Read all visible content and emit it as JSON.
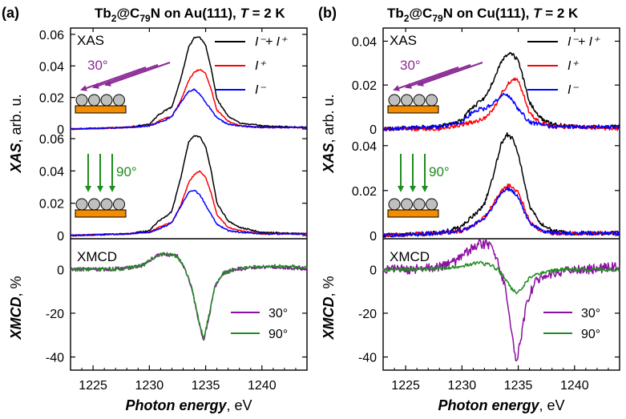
{
  "colors": {
    "sum": "#000000",
    "plus": "#ff0000",
    "minus": "#0000ff",
    "xmcd30": "#8b0fa0",
    "xmcd90": "#228b22",
    "surface": "#f28c00",
    "sphere": "#bfbfbf",
    "arrow30": "#8b2a96",
    "arrow90": "#1e8c1e"
  },
  "chart_data": [
    {
      "type": "line",
      "panel": "(a)",
      "title_parts": [
        "Tb",
        "2",
        "@C",
        "79",
        "N on Au(111), ",
        "T",
        " = 2 K"
      ],
      "xlabel": "Photon energy, eV",
      "xlabel_italic": "Photon energy",
      "xlabel_unit": ", eV",
      "xlim": [
        1223,
        1244
      ],
      "xticks": [
        1225,
        1230,
        1235,
        1240
      ],
      "ylabel_xas": "XAS, arb. u.",
      "ylabel_xas_italic": "XAS",
      "ylabel_xas_unit": ", arb. u.",
      "ylabel_xmcd": "XMCD, %",
      "ylabel_xmcd_italic": "XMCD",
      "ylabel_xmcd_unit": ", %",
      "legend_xas": [
        {
          "key": "sum",
          "label": "I⁻+ I⁺"
        },
        {
          "key": "plus",
          "label": "I⁺"
        },
        {
          "key": "minus",
          "label": "I⁻"
        }
      ],
      "legend_xmcd": [
        {
          "key": "xmcd30",
          "label": "30°"
        },
        {
          "key": "xmcd90",
          "label": "90°"
        }
      ],
      "xas_label": "XAS",
      "xmcd_label": "XMCD",
      "angle30": "30°",
      "angle90": "90°",
      "xas30": {
        "ylim": [
          -0.002,
          0.064
        ],
        "yticks": [
          0,
          0.02,
          0.04,
          0.06
        ],
        "series": {
          "sum": {
            "x": [
              1223,
              1228,
              1230,
              1230.8,
              1231.5,
              1232,
              1232.8,
              1233.5,
              1234,
              1234.5,
              1235,
              1235.5,
              1236,
              1237,
              1238,
              1240,
              1244
            ],
            "y": [
              0,
              0.001,
              0.003,
              0.009,
              0.012,
              0.014,
              0.032,
              0.052,
              0.058,
              0.058,
              0.053,
              0.038,
              0.019,
              0.008,
              0.004,
              0.002,
              0.001
            ]
          },
          "plus": {
            "x": [
              1223,
              1228,
              1230,
              1230.8,
              1231.5,
              1232,
              1232.8,
              1233.5,
              1234,
              1234.5,
              1235,
              1235.5,
              1236,
              1237,
              1238,
              1240,
              1244
            ],
            "y": [
              0,
              0.001,
              0.002,
              0.005,
              0.007,
              0.008,
              0.018,
              0.031,
              0.036,
              0.038,
              0.035,
              0.025,
              0.012,
              0.005,
              0.002,
              0.001,
              0.001
            ]
          },
          "minus": {
            "x": [
              1223,
              1228,
              1230,
              1230.8,
              1231.5,
              1232,
              1232.8,
              1233.5,
              1234,
              1234.5,
              1235,
              1235.5,
              1236,
              1237,
              1238,
              1240,
              1244
            ],
            "y": [
              0,
              0.001,
              0.002,
              0.004,
              0.006,
              0.008,
              0.017,
              0.024,
              0.025,
              0.022,
              0.017,
              0.012,
              0.007,
              0.003,
              0.002,
              0.001,
              0.001
            ]
          }
        }
      },
      "xas90": {
        "ylim": [
          -0.002,
          0.064
        ],
        "yticks": [
          0,
          0.02,
          0.04,
          0.06
        ],
        "series": {
          "sum": {
            "x": [
              1223,
              1228,
              1230,
              1230.8,
              1231.5,
              1232,
              1232.8,
              1233.5,
              1234,
              1234.5,
              1235,
              1235.5,
              1236,
              1237,
              1238,
              1240,
              1244
            ],
            "y": [
              0,
              0.001,
              0.003,
              0.009,
              0.012,
              0.015,
              0.036,
              0.058,
              0.062,
              0.061,
              0.055,
              0.04,
              0.02,
              0.009,
              0.005,
              0.002,
              0.001
            ]
          },
          "plus": {
            "x": [
              1223,
              1228,
              1230,
              1230.8,
              1231.5,
              1232,
              1232.8,
              1233.5,
              1234,
              1234.5,
              1235,
              1235.5,
              1236,
              1237,
              1238,
              1240,
              1244
            ],
            "y": [
              0,
              0.001,
              0.002,
              0.005,
              0.007,
              0.008,
              0.019,
              0.033,
              0.038,
              0.04,
              0.036,
              0.026,
              0.013,
              0.005,
              0.003,
              0.001,
              0.001
            ]
          },
          "minus": {
            "x": [
              1223,
              1228,
              1230,
              1230.8,
              1231.5,
              1232,
              1232.8,
              1233.5,
              1234,
              1234.5,
              1235,
              1235.5,
              1236,
              1237,
              1238,
              1240,
              1244
            ],
            "y": [
              0,
              0.001,
              0.002,
              0.004,
              0.006,
              0.008,
              0.018,
              0.027,
              0.028,
              0.025,
              0.019,
              0.013,
              0.007,
              0.003,
              0.002,
              0.001,
              0.001
            ]
          }
        }
      },
      "xmcd": {
        "ylim": [
          -46,
          14
        ],
        "yticks": [
          0,
          -20,
          -40
        ],
        "series": {
          "xmcd30": {
            "x": [
              1223,
              1226,
              1228,
              1229.5,
              1230.5,
              1231.5,
              1232.5,
              1233.2,
              1233.8,
              1234.3,
              1234.8,
              1235.3,
              1235.8,
              1236.5,
              1237.5,
              1239,
              1241,
              1243.5
            ],
            "y": [
              0,
              0,
              0.5,
              2,
              6,
              7,
              6,
              0,
              -9,
              -22,
              -33,
              -22,
              -8,
              -2,
              0,
              0.5,
              1,
              0.5
            ]
          },
          "xmcd90": {
            "x": [
              1223,
              1226,
              1228,
              1229.5,
              1230.5,
              1231.5,
              1232.5,
              1233.2,
              1233.8,
              1234.3,
              1234.8,
              1235.3,
              1235.8,
              1236.5,
              1237.5,
              1239,
              1241,
              1243.5
            ],
            "y": [
              0,
              0,
              0.5,
              2,
              6,
              7,
              6,
              0,
              -9,
              -21,
              -32,
              -21,
              -8,
              -2,
              0,
              1,
              1.5,
              1
            ]
          }
        }
      }
    },
    {
      "type": "line",
      "panel": "(b)",
      "title_parts": [
        "Tb",
        "2",
        "@C",
        "79",
        "N on Cu(111), ",
        "T",
        " = 2 K"
      ],
      "xlabel": "Photon energy, eV",
      "xlabel_italic": "Photon energy",
      "xlabel_unit": ", eV",
      "xlim": [
        1223,
        1244
      ],
      "xticks": [
        1225,
        1230,
        1235,
        1240
      ],
      "ylabel_xas": "XAS, arb. u.",
      "ylabel_xas_italic": "XAS",
      "ylabel_xas_unit": ", arb. u.",
      "ylabel_xmcd": "XMCD, %",
      "ylabel_xmcd_italic": "XMCD",
      "ylabel_xmcd_unit": ", %",
      "legend_xas": [
        {
          "key": "sum",
          "label": "I⁻+ I⁺"
        },
        {
          "key": "plus",
          "label": "I⁺"
        },
        {
          "key": "minus",
          "label": "I⁻"
        }
      ],
      "legend_xmcd": [
        {
          "key": "xmcd30",
          "label": "30°"
        },
        {
          "key": "xmcd90",
          "label": "90°"
        }
      ],
      "xas_label": "XAS",
      "xmcd_label": "XMCD",
      "angle30": "30°",
      "angle90": "90°",
      "xas30": {
        "ylim": [
          -0.0015,
          0.046
        ],
        "yticks": [
          0,
          0.02,
          0.04
        ],
        "series": {
          "sum": {
            "x": [
              1223,
              1228,
              1230,
              1230.8,
              1231.5,
              1232,
              1232.8,
              1233.5,
              1234,
              1234.5,
              1235,
              1235.5,
              1236,
              1237,
              1238,
              1240,
              1244
            ],
            "y": [
              0,
              0.001,
              0.004,
              0.009,
              0.012,
              0.014,
              0.022,
              0.031,
              0.034,
              0.034,
              0.031,
              0.022,
              0.012,
              0.005,
              0.002,
              0.001,
              0.001
            ]
          },
          "plus": {
            "x": [
              1223,
              1228,
              1230,
              1230.8,
              1231.5,
              1232,
              1232.8,
              1233.5,
              1234,
              1234.5,
              1235,
              1235.5,
              1236,
              1237,
              1238,
              1240,
              1244
            ],
            "y": [
              0,
              0,
              0.002,
              0.003,
              0.004,
              0.005,
              0.009,
              0.016,
              0.02,
              0.023,
              0.022,
              0.015,
              0.007,
              0.003,
              0.001,
              0.001,
              0
            ]
          },
          "minus": {
            "x": [
              1223,
              1228,
              1230,
              1230.8,
              1231.5,
              1232,
              1232.8,
              1233.5,
              1234,
              1234.5,
              1235,
              1235.5,
              1236,
              1237,
              1238,
              1240,
              1244
            ],
            "y": [
              0,
              0.001,
              0.003,
              0.007,
              0.009,
              0.009,
              0.012,
              0.015,
              0.016,
              0.013,
              0.009,
              0.006,
              0.003,
              0.002,
              0.001,
              0.001,
              0.001
            ]
          }
        }
      },
      "xas90": {
        "ylim": [
          -0.0015,
          0.046
        ],
        "yticks": [
          0,
          0.02,
          0.04
        ],
        "series": {
          "sum": {
            "x": [
              1223,
              1228,
              1230,
              1230.8,
              1231.5,
              1232,
              1232.8,
              1233.5,
              1234,
              1234.5,
              1235,
              1235.5,
              1236,
              1237,
              1238,
              1240,
              1244
            ],
            "y": [
              0,
              0.001,
              0.004,
              0.008,
              0.011,
              0.014,
              0.027,
              0.041,
              0.045,
              0.043,
              0.036,
              0.025,
              0.013,
              0.005,
              0.002,
              0.001,
              0.001
            ]
          },
          "plus": {
            "x": [
              1223,
              1228,
              1230,
              1230.8,
              1231.5,
              1232,
              1232.8,
              1233.5,
              1234,
              1234.5,
              1235,
              1235.5,
              1236,
              1237,
              1238,
              1240,
              1244
            ],
            "y": [
              0,
              0.001,
              0.002,
              0.004,
              0.006,
              0.008,
              0.014,
              0.02,
              0.022,
              0.022,
              0.019,
              0.013,
              0.006,
              0.002,
              0.001,
              0.001,
              0.001
            ]
          },
          "minus": {
            "x": [
              1223,
              1228,
              1230,
              1230.8,
              1231.5,
              1232,
              1232.8,
              1233.5,
              1234,
              1234.5,
              1235,
              1235.5,
              1236,
              1237,
              1238,
              1240,
              1244
            ],
            "y": [
              0,
              0.001,
              0.002,
              0.004,
              0.006,
              0.008,
              0.013,
              0.019,
              0.021,
              0.02,
              0.017,
              0.011,
              0.006,
              0.002,
              0.001,
              0.001,
              0.001
            ]
          }
        }
      },
      "xmcd": {
        "ylim": [
          -46,
          14
        ],
        "yticks": [
          0,
          -20,
          -40
        ],
        "series": {
          "xmcd30": {
            "x": [
              1223,
              1226,
              1228,
              1229.5,
              1230.5,
              1231.5,
              1232.5,
              1233.2,
              1233.8,
              1234.3,
              1234.8,
              1235.3,
              1235.8,
              1236.5,
              1237.5,
              1239,
              1241,
              1243.5
            ],
            "y": [
              0,
              0,
              1,
              4,
              8,
              12,
              11,
              4,
              -8,
              -25,
              -43,
              -30,
              -14,
              -6,
              -3,
              -1,
              0,
              1
            ]
          },
          "xmcd90": {
            "x": [
              1223,
              1226,
              1228,
              1229.5,
              1230.5,
              1231.5,
              1232.5,
              1233.2,
              1233.8,
              1234.3,
              1234.8,
              1235.3,
              1235.8,
              1236.5,
              1237.5,
              1239,
              1241,
              1243.5
            ],
            "y": [
              0,
              0,
              0.5,
              1,
              2,
              3,
              2,
              0,
              -4,
              -8,
              -11,
              -9,
              -5,
              -2,
              -1,
              0,
              0,
              0
            ]
          }
        }
      }
    }
  ]
}
